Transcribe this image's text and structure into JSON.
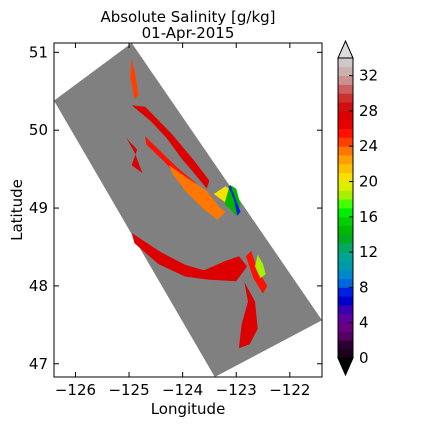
{
  "chart_data": {
    "type": "heatmap",
    "title": "Absolute Salinity [g/kg]",
    "subtitle": "01-Apr-2015",
    "xlabel": "Longitude",
    "ylabel": "Latitude",
    "xlim": [
      -126.4,
      -121.4
    ],
    "ylim": [
      46.83,
      51.12
    ],
    "xticks": [
      -126,
      -125,
      -124,
      -123,
      -122
    ],
    "yticks": [
      47,
      48,
      49,
      50,
      51
    ],
    "grid": false,
    "colorbar": {
      "vmin": 0,
      "vmax": 34,
      "ticks": [
        0,
        4,
        8,
        12,
        16,
        20,
        24,
        28,
        32
      ],
      "extend": "both",
      "bands": [
        "#1a001a",
        "#2a0030",
        "#520062",
        "#6a0080",
        "#5e009e",
        "#3a00b4",
        "#0000cc",
        "#0020e0",
        "#0066dd",
        "#0088cc",
        "#0099aa",
        "#00a596",
        "#00a864",
        "#00aa22",
        "#00b800",
        "#00d000",
        "#00ee00",
        "#44ff00",
        "#a8f000",
        "#dcee00",
        "#f8e000",
        "#ffc000",
        "#ffa000",
        "#ff7700",
        "#ff4000",
        "#ff1000",
        "#e80000",
        "#dd0000",
        "#d01010",
        "#cc3030",
        "#cc6060",
        "#cc9090",
        "#ccb0b0",
        "#d0c8c8"
      ],
      "under_color": "#000000",
      "over_color": "#dddddd"
    },
    "domain_color": "#808080",
    "domain_corners": [
      [
        -126.4,
        50.38
      ],
      [
        -124.95,
        51.12
      ],
      [
        -121.4,
        47.56
      ],
      [
        -123.4,
        46.83
      ]
    ],
    "regions": [
      {
        "salinity": 27,
        "points": [
          [
            -124.95,
            48.68
          ],
          [
            -124.4,
            48.43
          ],
          [
            -123.95,
            48.27
          ],
          [
            -123.6,
            48.2
          ],
          [
            -123.2,
            48.32
          ],
          [
            -122.95,
            48.38
          ],
          [
            -122.8,
            48.25
          ],
          [
            -123.0,
            48.06
          ],
          [
            -123.5,
            48.08
          ],
          [
            -123.95,
            48.12
          ],
          [
            -124.45,
            48.28
          ],
          [
            -124.9,
            48.55
          ]
        ]
      },
      {
        "salinity": 27,
        "points": [
          [
            -122.85,
            48.05
          ],
          [
            -122.65,
            47.8
          ],
          [
            -122.6,
            47.45
          ],
          [
            -122.75,
            47.25
          ],
          [
            -122.95,
            47.2
          ],
          [
            -122.9,
            47.5
          ],
          [
            -122.78,
            47.8
          ]
        ]
      },
      {
        "salinity": 27,
        "points": [
          [
            -124.95,
            50.32
          ],
          [
            -124.6,
            50.12
          ],
          [
            -124.3,
            49.9
          ],
          [
            -124.0,
            49.62
          ],
          [
            -123.75,
            49.42
          ],
          [
            -123.55,
            49.25
          ],
          [
            -123.5,
            49.35
          ],
          [
            -123.8,
            49.62
          ],
          [
            -124.2,
            49.95
          ],
          [
            -124.7,
            50.3
          ]
        ]
      },
      {
        "salinity": 25,
        "points": [
          [
            -124.7,
            49.92
          ],
          [
            -124.4,
            49.72
          ],
          [
            -124.1,
            49.52
          ],
          [
            -123.75,
            49.32
          ],
          [
            -123.55,
            49.12
          ],
          [
            -123.65,
            49.08
          ],
          [
            -123.95,
            49.3
          ],
          [
            -124.35,
            49.6
          ],
          [
            -124.68,
            49.82
          ]
        ]
      },
      {
        "salinity": 23,
        "points": [
          [
            -124.25,
            49.55
          ],
          [
            -123.9,
            49.38
          ],
          [
            -123.55,
            49.22
          ],
          [
            -123.3,
            49.0
          ],
          [
            -123.2,
            48.95
          ],
          [
            -123.35,
            48.85
          ],
          [
            -123.6,
            48.98
          ],
          [
            -123.95,
            49.22
          ],
          [
            -124.2,
            49.45
          ]
        ]
      },
      {
        "salinity": 20,
        "points": [
          [
            -123.42,
            49.18
          ],
          [
            -123.22,
            49.08
          ],
          [
            -123.05,
            48.98
          ],
          [
            -123.05,
            49.22
          ],
          [
            -123.2,
            49.28
          ]
        ]
      },
      {
        "salinity": 14,
        "points": [
          [
            -123.22,
            49.05
          ],
          [
            -123.1,
            48.98
          ],
          [
            -123.0,
            48.9
          ],
          [
            -122.92,
            49.05
          ],
          [
            -123.0,
            49.25
          ],
          [
            -123.12,
            49.3
          ]
        ]
      },
      {
        "salinity": 7,
        "points": [
          [
            -123.1,
            49.28
          ],
          [
            -123.0,
            49.1
          ],
          [
            -122.92,
            48.95
          ],
          [
            -122.98,
            48.9
          ],
          [
            -123.05,
            49.12
          ],
          [
            -123.15,
            49.28
          ]
        ]
      },
      {
        "salinity": 25,
        "points": [
          [
            -122.72,
            48.45
          ],
          [
            -122.6,
            48.2
          ],
          [
            -122.42,
            48.0
          ],
          [
            -122.5,
            47.9
          ],
          [
            -122.68,
            48.1
          ],
          [
            -122.82,
            48.38
          ]
        ]
      },
      {
        "salinity": 18,
        "points": [
          [
            -122.6,
            48.4
          ],
          [
            -122.5,
            48.28
          ],
          [
            -122.45,
            48.15
          ],
          [
            -122.55,
            48.1
          ],
          [
            -122.65,
            48.25
          ]
        ]
      },
      {
        "salinity": 27,
        "points": [
          [
            -125.05,
            49.9
          ],
          [
            -124.85,
            49.75
          ],
          [
            -124.95,
            49.55
          ],
          [
            -124.75,
            49.45
          ],
          [
            -124.9,
            49.72
          ]
        ]
      },
      {
        "salinity": 24,
        "points": [
          [
            -124.95,
            50.92
          ],
          [
            -124.88,
            50.7
          ],
          [
            -124.82,
            50.45
          ],
          [
            -124.9,
            50.4
          ],
          [
            -124.98,
            50.7
          ]
        ]
      }
    ]
  }
}
